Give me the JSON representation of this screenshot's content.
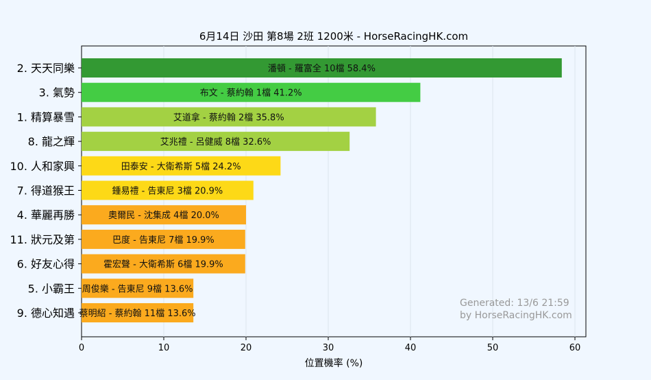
{
  "chart_data": {
    "type": "bar",
    "orientation": "horizontal",
    "title": "6月14日  沙田  第8場  2班  1200米 - HorseRacingHK.com",
    "xlabel": "位置機率 (%)",
    "ylabel": "",
    "xlim": [
      0,
      61
    ],
    "xticks": [
      0,
      10,
      20,
      30,
      40,
      50,
      60
    ],
    "grid": true,
    "categories": [
      "2. 天天同樂",
      "3. 氣勢",
      "1. 精算暴雪",
      "8. 龍之輝",
      "10. 人和家興",
      "7. 得道猴王",
      "4. 華麗再勝",
      "11. 狀元及第",
      "6. 好友心得",
      "5. 小霸王",
      "9. 德心知遇"
    ],
    "values": [
      58.4,
      41.2,
      35.8,
      32.6,
      24.2,
      20.9,
      20.0,
      19.9,
      19.9,
      13.6,
      13.6
    ],
    "bar_labels": [
      "潘頓 - 羅富全 10檔  58.4%",
      "布文 - 蔡約翰 1檔  41.2%",
      "艾道拿 - 蔡約翰 2檔  35.8%",
      "艾兆禮 - 呂健威 8檔  32.6%",
      "田泰安 - 大衛希斯 5檔  24.2%",
      "鍾易禮 - 告東尼 3檔  20.9%",
      "奧爾民 - 沈集成 4檔  20.0%",
      "巴度 - 告東尼 7檔  19.9%",
      "霍宏聲 - 大衛希斯 6檔  19.9%",
      "周俊樂 - 告東尼 9檔  13.6%",
      "蔡明紹 - 蔡約翰 11檔  13.6%"
    ],
    "bar_colors": [
      "#339933",
      "#44cc44",
      "#a3d143",
      "#a3d143",
      "#fdd917",
      "#fdd917",
      "#fbaa1e",
      "#fbaa1e",
      "#fbaa1e",
      "#fbaa1e",
      "#fbaa1e"
    ],
    "watermark": [
      "Generated: 13/6 21:59",
      "by HorseRacingHK.com"
    ]
  }
}
